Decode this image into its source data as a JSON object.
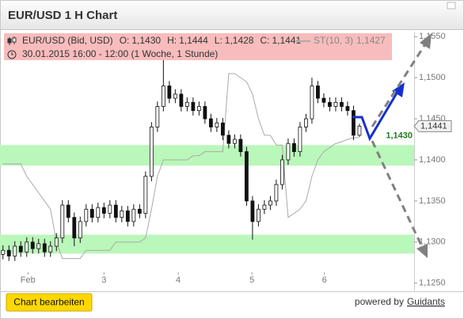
{
  "header": {
    "title": "EUR/USD 1 H Chart"
  },
  "chart_data": {
    "type": "candlestick",
    "legend": {
      "symbol": "EUR/USD (Bid, USD)",
      "fields": [
        {
          "label": "O:",
          "value": "1,1430"
        },
        {
          "label": "H:",
          "value": "1,1444"
        },
        {
          "label": "L:",
          "value": "1,1428"
        },
        {
          "label": "C:",
          "value": "1,1441"
        }
      ],
      "indicator": "ST(10, 3)",
      "indicator_value": "1,1427",
      "period": "30.01.2015 16:00 - 12:00 (1 Woche, 1 Stunde)"
    },
    "x": [
      0,
      1,
      2,
      3,
      4,
      5,
      6,
      7,
      8,
      9,
      10,
      11,
      12,
      13,
      14,
      15,
      16,
      17,
      18,
      19,
      20,
      21,
      22,
      23,
      24,
      25,
      26,
      27,
      28,
      29,
      30,
      31,
      32,
      33,
      34,
      35,
      36,
      37,
      38,
      39,
      40,
      41,
      42,
      43,
      44,
      45,
      46,
      47,
      48,
      49,
      50,
      51,
      52,
      53,
      54,
      55,
      56,
      57,
      58,
      59,
      60
    ],
    "open": [
      1.1285,
      1.129,
      1.1283,
      1.1295,
      1.1288,
      1.13,
      1.1292,
      1.1298,
      1.1288,
      1.1295,
      1.1305,
      1.1345,
      1.133,
      1.1305,
      1.1325,
      1.134,
      1.133,
      1.1342,
      1.1335,
      1.1345,
      1.133,
      1.1338,
      1.1325,
      1.134,
      1.1335,
      1.138,
      1.144,
      1.1465,
      1.149,
      1.1475,
      1.148,
      1.1465,
      1.147,
      1.146,
      1.1465,
      1.145,
      1.144,
      1.1445,
      1.143,
      1.142,
      1.1425,
      1.141,
      1.135,
      1.1325,
      1.134,
      1.1345,
      1.135,
      1.137,
      1.14,
      1.142,
      1.141,
      1.144,
      1.145,
      1.149,
      1.1475,
      1.147,
      1.1465,
      1.147,
      1.1465,
      1.146,
      1.143
    ],
    "high": [
      1.1296,
      1.1296,
      1.1301,
      1.1301,
      1.1306,
      1.1306,
      1.1304,
      1.1304,
      1.1301,
      1.1311,
      1.1351,
      1.1351,
      1.1336,
      1.1331,
      1.1346,
      1.1346,
      1.1348,
      1.1348,
      1.1351,
      1.1351,
      1.1344,
      1.1344,
      1.1346,
      1.1346,
      1.1386,
      1.1446,
      1.1471,
      1.1522,
      1.1496,
      1.1486,
      1.1486,
      1.1476,
      1.1476,
      1.1471,
      1.1471,
      1.1456,
      1.1451,
      1.1451,
      1.1436,
      1.1431,
      1.1431,
      1.1416,
      1.1356,
      1.1346,
      1.1351,
      1.1356,
      1.1376,
      1.1406,
      1.1426,
      1.1426,
      1.1446,
      1.1456,
      1.15,
      1.1496,
      1.1481,
      1.1476,
      1.1476,
      1.1476,
      1.1471,
      1.1466,
      1.1444
    ],
    "low": [
      1.1279,
      1.1277,
      1.1277,
      1.1282,
      1.1282,
      1.1286,
      1.1286,
      1.1282,
      1.1282,
      1.1289,
      1.1299,
      1.1324,
      1.1295,
      1.1299,
      1.1319,
      1.1324,
      1.1324,
      1.1329,
      1.1329,
      1.1324,
      1.1324,
      1.1319,
      1.1319,
      1.1329,
      1.1329,
      1.1374,
      1.1434,
      1.1459,
      1.1469,
      1.1469,
      1.1459,
      1.1459,
      1.1454,
      1.1454,
      1.1444,
      1.1434,
      1.1434,
      1.1424,
      1.1414,
      1.1414,
      1.1404,
      1.1344,
      1.1303,
      1.1319,
      1.1334,
      1.1339,
      1.1344,
      1.1364,
      1.1394,
      1.1404,
      1.1404,
      1.1434,
      1.1444,
      1.1469,
      1.1464,
      1.1459,
      1.1459,
      1.1459,
      1.1454,
      1.1424,
      1.1428
    ],
    "close": [
      1.129,
      1.1283,
      1.1295,
      1.1288,
      1.13,
      1.1292,
      1.1298,
      1.1288,
      1.1295,
      1.1305,
      1.1345,
      1.133,
      1.1305,
      1.1325,
      1.134,
      1.133,
      1.1342,
      1.1335,
      1.1345,
      1.133,
      1.1338,
      1.1325,
      1.134,
      1.1335,
      1.138,
      1.144,
      1.1465,
      1.149,
      1.1475,
      1.148,
      1.1465,
      1.147,
      1.146,
      1.1465,
      1.145,
      1.144,
      1.1445,
      1.143,
      1.142,
      1.1425,
      1.141,
      1.135,
      1.1325,
      1.134,
      1.1345,
      1.135,
      1.137,
      1.14,
      1.142,
      1.141,
      1.144,
      1.145,
      1.149,
      1.1475,
      1.147,
      1.1465,
      1.147,
      1.1465,
      1.146,
      1.143,
      1.1441
    ],
    "up_color": "#ffffff",
    "down_color": "#111111",
    "supertrend": {
      "color": "#aaaaaa",
      "values": [
        1.1395,
        1.1395,
        1.1395,
        1.1395,
        1.138,
        1.137,
        1.136,
        1.135,
        1.134,
        1.13,
        1.128,
        1.128,
        1.128,
        1.128,
        1.129,
        1.129,
        1.129,
        1.129,
        1.129,
        1.13,
        1.13,
        1.13,
        1.13,
        1.13,
        1.1305,
        1.134,
        1.138,
        1.14,
        1.14,
        1.14,
        1.14,
        1.14,
        1.1405,
        1.1405,
        1.141,
        1.141,
        1.141,
        1.141,
        1.1505,
        1.1505,
        1.15,
        1.1495,
        1.148,
        1.145,
        1.143,
        1.143,
        1.1418,
        1.1418,
        1.133,
        1.1335,
        1.134,
        1.135,
        1.138,
        1.14,
        1.141,
        1.1415,
        1.142,
        1.1422,
        1.1425,
        1.1427,
        1.1427
      ]
    },
    "zones": [
      {
        "low": 1.1393,
        "high": 1.1418
      },
      {
        "low": 1.1286,
        "high": 1.1309
      }
    ],
    "zone_color": "#baf7ba",
    "xlim": [
      -0.5,
      69.2
    ],
    "xticks": [
      {
        "value": 4.2,
        "label": "Feb"
      },
      {
        "value": 17,
        "label": "3"
      },
      {
        "value": 29.5,
        "label": "4"
      },
      {
        "value": 41.9,
        "label": "5"
      },
      {
        "value": 54.1,
        "label": "6"
      }
    ],
    "ylim": [
      1.1243,
      1.1556
    ],
    "yticks": [
      {
        "value": 1.125,
        "label": "1,1250"
      },
      {
        "value": 1.13,
        "label": "1,1300"
      },
      {
        "value": 1.135,
        "label": "1,1350"
      },
      {
        "value": 1.14,
        "label": "1,1400"
      },
      {
        "value": 1.145,
        "label": "1,1450"
      },
      {
        "value": 1.15,
        "label": "1,1500"
      },
      {
        "value": 1.155,
        "label": "1,1550"
      }
    ],
    "price_labels": [
      {
        "value": 1.143,
        "label": "1,1430",
        "color": "#1f7a1f"
      },
      {
        "value": 1.1441,
        "label": "1,1441",
        "color": "#333333"
      }
    ]
  },
  "footer": {
    "button": "Chart bearbeiten",
    "powered_by": "powered by",
    "brand": "Guidants"
  }
}
